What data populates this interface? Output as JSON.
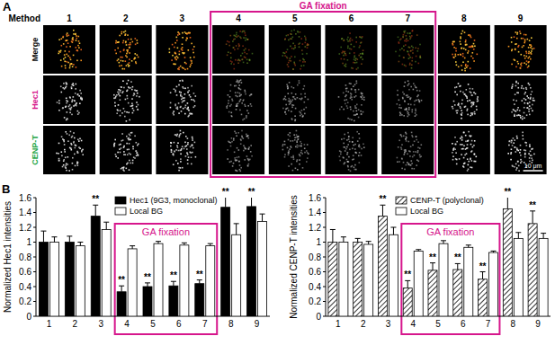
{
  "panel_a": {
    "panel_label": "A",
    "method_label": "Method",
    "methods": [
      "1",
      "2",
      "3",
      "4",
      "5",
      "6",
      "7",
      "8",
      "9"
    ],
    "rows": [
      "Merge",
      "Hec1",
      "CENP-T"
    ],
    "row_colors": [
      "#000000",
      "#d6168c",
      "#2aa84a"
    ],
    "highlight": {
      "label": "GA fixation",
      "from": "4",
      "to": "7",
      "color": "#d6168c"
    },
    "scale_bar": "10 μm"
  },
  "panel_b": {
    "panel_label": "B"
  },
  "chart_data": [
    {
      "type": "bar",
      "ylabel": "Normalized Hec1 intensities",
      "categories": [
        "1",
        "2",
        "3",
        "4",
        "5",
        "6",
        "7",
        "8",
        "9"
      ],
      "ylim": [
        0,
        1.6
      ],
      "yticks": [
        0,
        0.2,
        0.4,
        0.6,
        0.8,
        1,
        1.2,
        1.4,
        1.6
      ],
      "legend": "top",
      "series": [
        {
          "name": "Hec1 (9G3, monoclonal)",
          "color": "#000000",
          "values": [
            1.0,
            1.0,
            1.35,
            0.33,
            0.4,
            0.41,
            0.44,
            1.47,
            1.48
          ],
          "errors": [
            0.15,
            0.08,
            0.15,
            0.08,
            0.05,
            0.06,
            0.05,
            0.17,
            0.2
          ],
          "annotations": [
            null,
            null,
            "**",
            "**",
            "**",
            "**",
            "**",
            "**",
            "**"
          ]
        },
        {
          "name": "Local BG",
          "color": "#ffffff",
          "values": [
            1.0,
            0.95,
            1.17,
            0.91,
            0.98,
            0.96,
            0.95,
            1.1,
            1.28
          ],
          "errors": [
            0.07,
            0.05,
            0.1,
            0.04,
            0.03,
            0.03,
            0.03,
            0.15,
            0.1
          ]
        }
      ],
      "highlight": {
        "label": "GA fixation",
        "from": "4",
        "to": "7",
        "color": "#d6168c"
      }
    },
    {
      "type": "bar",
      "ylabel": "Normalized CENP-T intensities",
      "categories": [
        "1",
        "2",
        "3",
        "4",
        "5",
        "6",
        "7",
        "8",
        "9"
      ],
      "ylim": [
        0,
        1.6
      ],
      "yticks": [
        0,
        0.2,
        0.4,
        0.6,
        0.8,
        1,
        1.2,
        1.4,
        1.6
      ],
      "legend": "top",
      "series": [
        {
          "name": "CENP-T (polyclonal)",
          "color": "#000000",
          "values": [
            1.0,
            1.0,
            1.35,
            0.38,
            0.62,
            0.63,
            0.5,
            1.45,
            1.25
          ],
          "errors": [
            0.17,
            0.05,
            0.15,
            0.1,
            0.1,
            0.08,
            0.1,
            0.25,
            0.17
          ],
          "annotations": [
            null,
            null,
            "**",
            "**",
            "**",
            "**",
            "**",
            "**",
            "**"
          ]
        },
        {
          "name": "Local BG",
          "color": "#ffffff",
          "values": [
            1.0,
            0.97,
            1.1,
            0.88,
            0.98,
            0.93,
            0.86,
            1.05,
            1.05
          ],
          "errors": [
            0.07,
            0.04,
            0.1,
            0.02,
            0.04,
            0.03,
            0.02,
            0.08,
            0.07
          ]
        }
      ],
      "highlight": {
        "label": "GA fixation",
        "from": "4",
        "to": "7",
        "color": "#d6168c"
      }
    }
  ]
}
